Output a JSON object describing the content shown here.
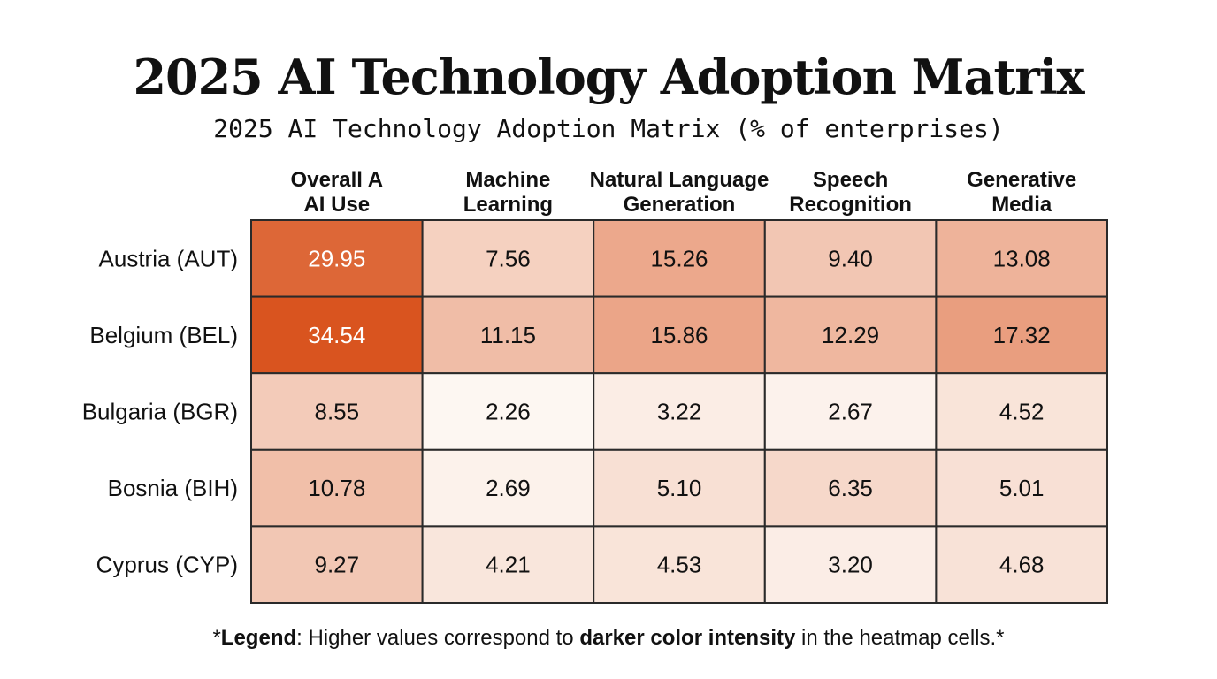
{
  "title": "2025 AI Technology Adoption Matrix",
  "subtitle": "2025 AI Technology Adoption Matrix (% of enterprises)",
  "legend": {
    "prefix": "*",
    "label": "Legend",
    "text_1": ": Higher values correspond to ",
    "emphasis": "darker color intensity",
    "text_2": " in the heatmap cells.*"
  },
  "colors": {
    "low": "#fdf7f2",
    "high": "#d9541f",
    "border": "#2a2a2a",
    "text_dark": "#111111",
    "text_light": "#ffffff"
  },
  "chart_data": {
    "type": "heatmap",
    "title": "2025 AI Technology Adoption Matrix",
    "subtitle": "2025 AI Technology Adoption Matrix (% of enterprises)",
    "columns": [
      [
        "Overall A",
        "AI Use"
      ],
      [
        "Machine",
        "Learning"
      ],
      [
        "Natural Language",
        "Generation"
      ],
      [
        "Speech",
        "Recognition"
      ],
      [
        "Generative",
        "Media"
      ]
    ],
    "rows": [
      "Austria (AUT)",
      "Belgium (BEL)",
      "Bulgaria (BGR)",
      "Bosnia (BIH)",
      "Cyprus (CYP)"
    ],
    "values": [
      [
        "29.95",
        "7.56",
        "15.26",
        "9.40",
        "13.08"
      ],
      [
        "34.54",
        "11.15",
        "15.86",
        "12.29",
        "17.32"
      ],
      [
        "8.55",
        "2.26",
        "3.22",
        "2.67",
        "4.52"
      ],
      [
        "10.78",
        "2.69",
        "5.10",
        "6.35",
        "5.01"
      ],
      [
        "9.27",
        "4.21",
        "4.53",
        "3.20",
        "4.68"
      ]
    ],
    "color_scale": {
      "low": "#fdf7f2",
      "high": "#d9541f"
    }
  }
}
